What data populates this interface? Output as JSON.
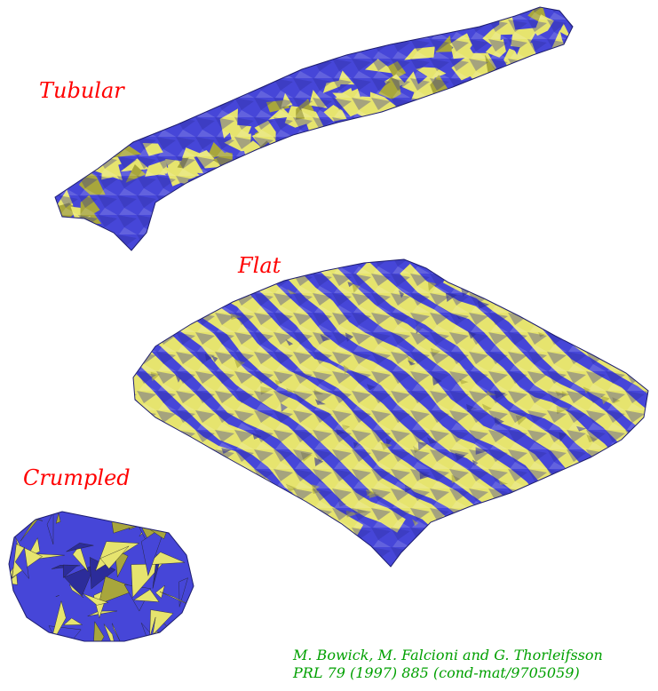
{
  "labels": {
    "tubular": "Tubular",
    "flat": "Flat",
    "crumpled": "Crumpled"
  },
  "credit": {
    "line1": "M. Bowick, M. Falcioni and G. Thorleifsson",
    "line2": "PRL 79 (1997) 885 (cond-mat/9705059)"
  },
  "colors": {
    "label": "#ff0000",
    "credit": "#00a000",
    "blue": "#4646d8",
    "blue_dark": "#2c2c9a",
    "yellow": "#e6e46e",
    "yellow_dark": "#a8a63c",
    "background": "#ffffff"
  }
}
